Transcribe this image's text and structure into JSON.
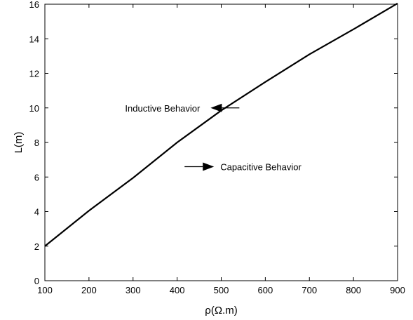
{
  "chart_data": {
    "type": "line",
    "title": "",
    "xlabel": "ρ(Ω.m)",
    "ylabel": "L(m)",
    "xlim": [
      100,
      900
    ],
    "ylim": [
      0,
      16
    ],
    "xticks": [
      100,
      200,
      300,
      400,
      500,
      600,
      700,
      800,
      900
    ],
    "yticks": [
      0,
      2,
      4,
      6,
      8,
      10,
      12,
      14,
      16
    ],
    "grid": false,
    "series": [
      {
        "x": [
          100,
          200,
          300,
          400,
          500,
          600,
          700,
          800,
          900
        ],
        "y": [
          2,
          4.05,
          5.95,
          8,
          9.85,
          11.5,
          13.1,
          14.55,
          16.05
        ]
      }
    ],
    "annotations": [
      {
        "text": "Inductive Behavior",
        "arrow_direction": "left",
        "x": 530,
        "y": 10
      },
      {
        "text": "Capacitive Behavior",
        "arrow_direction": "right",
        "x": 455,
        "y": 6.6
      }
    ]
  }
}
